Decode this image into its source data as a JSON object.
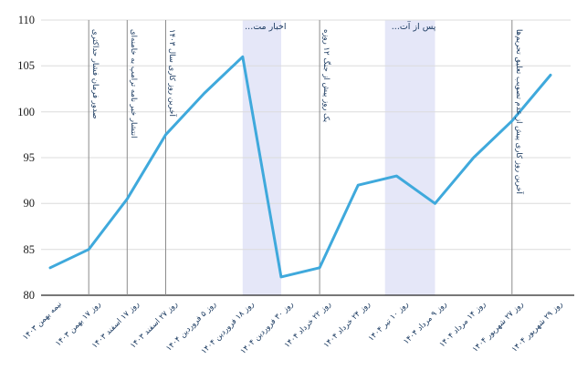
{
  "chart_data": {
    "type": "line",
    "title": "",
    "xlabel": "",
    "ylabel": "",
    "ylim": [
      80,
      110
    ],
    "yticks": [
      80,
      85,
      90,
      95,
      100,
      105,
      110
    ],
    "grid": true,
    "legend": "none",
    "categories": [
      "نیمه بهمن ۱۴۰۳",
      "روز ۱۷ بهمن ۱۴۰۳",
      "روز ۱۷ اسفند ۱۴۰۳",
      "روز ۲۷ اسفند ۱۴۰۳",
      "روز ۵ فروردین ۱۴۰۴",
      "روز ۱۸ فروردین ۱۴۰۴",
      "روز ۳۰ فروردین ۱۴۰۴",
      "روز ۲۲ خرداد ۱۴۰۴",
      "روز ۲۴ خرداد ۱۴۰۴",
      "روز ۱۰ تیر ۱۴۰۴",
      "روز ۹ مرداد ۱۴۰۴",
      "روز ۱۴ مرداد ۱۴۰۴",
      "روز ۲۷ شهریور ۱۴۰۴",
      "روز ۲۹ شهریور ۱۴۰۴"
    ],
    "values": [
      83,
      85,
      90.5,
      97.5,
      102,
      106,
      82,
      83,
      92,
      93,
      90,
      95,
      99,
      104
    ],
    "annotations": {
      "vlines": [
        {
          "index": 1,
          "label": "صدور فرمان فشار حداکثری"
        },
        {
          "index": 2,
          "label": "انتشار خبر نامه ترامپ به خامنه‌ای"
        },
        {
          "index": 3,
          "label": "آخرین روز کاری سال ۱۴۰۳"
        },
        {
          "index": 7,
          "label": "یک روز پیش از جنگ ۱۲ روزه"
        },
        {
          "index": 12,
          "label": "آخرین روز کاری پیش از عدم تصویب تعلیق تحریم‌ها"
        }
      ],
      "bands": [
        {
          "from_index": 5,
          "to_index": 6,
          "label": "اخبار مت..."
        },
        {
          "from_index": 8.7,
          "to_index": 10,
          "label": "پس از آت..."
        }
      ]
    },
    "colors": {
      "line": "#3FA9DC",
      "band": "#E5E7F8",
      "grid": "#DCDCDC",
      "vline": "#8C8C8C",
      "axis": "#262626",
      "annotation_text": "#17375E",
      "tick_text": "#1A1A1A"
    }
  }
}
